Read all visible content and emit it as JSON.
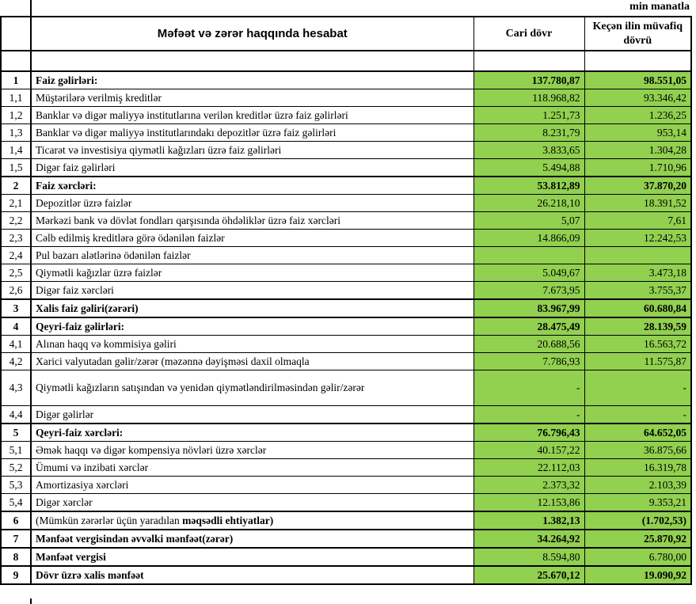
{
  "note": "min manatla",
  "header": {
    "title": "Məfəət və zərər haqqında hesabat",
    "col_current": "Cari dövr",
    "col_previous": "Keçən ilin müvafiq dövrü"
  },
  "colors": {
    "value_cell_green": "#92d050",
    "border_black": "#000000"
  },
  "table": {
    "rows": [
      {
        "no": "1",
        "label": "Faiz gəlirləri:",
        "current": "137.780,87",
        "previous": "98.551,05",
        "section": true
      },
      {
        "no": "1,1",
        "label": "Müştərilərə verilmiş kreditlər",
        "current": "118.968,82",
        "previous": "93.346,42"
      },
      {
        "no": "1,2",
        "label": "Banklar və digər maliyyə institutlarına verilən kreditlər üzrə faiz gəlirləri",
        "current": "1.251,73",
        "previous": "1.236,25"
      },
      {
        "no": "1,3",
        "label": "Banklar və digər maliyyə institutlarındakı depozitlər üzrə faiz gəlirləri",
        "current": "8.231,79",
        "previous": "953,14"
      },
      {
        "no": "1,4",
        "label": "Ticarət və investisiya qiymətli kağızları üzrə faiz gəlirləri",
        "current": "3.833,65",
        "previous": "1.304,28"
      },
      {
        "no": "1,5",
        "label": "Digər faiz gəlirləri",
        "current": "5.494,88",
        "previous": "1.710,96"
      },
      {
        "no": "2",
        "label": "Faiz xərcləri:",
        "current": "53.812,89",
        "previous": "37.870,20",
        "section": true
      },
      {
        "no": "2,1",
        "label": "Depozitlər üzrə faizlər",
        "current": "26.218,10",
        "previous": "18.391,52"
      },
      {
        "no": "2,2",
        "label": "Mərkəzi bank və dövlət fondları qarşısında öhdəliklər üzrə faiz xərcləri",
        "current": "5,07",
        "previous": "7,61"
      },
      {
        "no": "2,3",
        "label": "Cəlb edilmiş kreditlərə görə ödənilən faizlər",
        "current": "14.866,09",
        "previous": "12.242,53"
      },
      {
        "no": "2,4",
        "label": "Pul bazarı alətlərinə ödənilən faizlər",
        "current": "",
        "previous": ""
      },
      {
        "no": "2,5",
        "label": "Qiymətli kağızlar üzrə faizlər",
        "current": "5.049,67",
        "previous": "3.473,18"
      },
      {
        "no": "2,6",
        "label": "Digər faiz xərcləri",
        "current": "7.673,95",
        "previous": "3.755,37"
      },
      {
        "no": "3",
        "label": "Xalis faiz gəliri(zərəri)",
        "current": "83.967,99",
        "previous": "60.680,84",
        "section": true
      },
      {
        "no": "4",
        "label": "Qeyri-faiz gəlirləri:",
        "current": "28.475,49",
        "previous": "28.139,59",
        "section": true
      },
      {
        "no": "4,1",
        "label": "Alınan haqq və kommisiya gəliri",
        "current": "20.688,56",
        "previous": "16.563,72"
      },
      {
        "no": "4,2",
        "label": "Xarici valyutadan gəlir/zərər (məzənnə dəyişməsi daxil olmaqla",
        "current": "7.786,93",
        "previous": "11.575,87"
      },
      {
        "no": "4,3",
        "label": "Qiymətli kağızların satışından və yenidən qiymətləndirilməsindən gəlir/zərər",
        "current": "-",
        "previous": "-",
        "tall": true
      },
      {
        "no": "4,4",
        "label": "Digər gəlirlər",
        "current": "-",
        "previous": "-"
      },
      {
        "no": "5",
        "label": "Qeyri-faiz xərcləri:",
        "current": "76.796,43",
        "previous": "64.652,05",
        "section": true
      },
      {
        "no": "5,1",
        "label": "Əmək haqqı və digər kompensiya növləri üzrə xərclər",
        "current": "40.157,22",
        "previous": "36.875,66"
      },
      {
        "no": "5,2",
        "label": "Ümumi və inzibati xərclər",
        "current": "22.112,03",
        "previous": "16.319,78"
      },
      {
        "no": "5,3",
        "label": "Amortizasiya xərcləri",
        "current": "2.373,32",
        "previous": "2.103,39"
      },
      {
        "no": "5,4",
        "label": "Digər xərclər",
        "current": "12.153,86",
        "previous": "9.353,21"
      },
      {
        "no": "6",
        "label": "(Mümkün zərərlər üçün yaradılan ",
        "label_bold": "məqsədli ehtiyatlar)",
        "current": "1.382,13",
        "previous": "(1.702,53)",
        "section": true
      },
      {
        "no": "7",
        "label": "Mənfəət vergisindən əvvəlki mənfəət(zərər)",
        "current": "34.264,92",
        "previous": "25.870,92",
        "section": true
      },
      {
        "no": "8",
        "label": "Mənfəət vergisi",
        "current": "8.594,80",
        "previous": "6.780,00",
        "section": true,
        "value_bold": false
      },
      {
        "no": "9",
        "label": "Dövr üzrə xalis mənfəət",
        "current": "25.670,12",
        "previous": "19.090,92",
        "section": true
      }
    ]
  }
}
